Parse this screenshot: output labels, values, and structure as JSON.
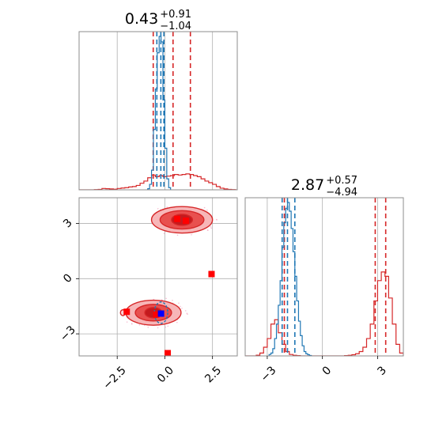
{
  "chart_data": {
    "type": "corner",
    "parameters": [
      "",
      ""
    ],
    "titles": [
      {
        "median": "0.43",
        "plus": "+0.91",
        "minus": "−1.04"
      },
      {
        "median": "2.87",
        "plus": "+0.57",
        "minus": "−4.94"
      }
    ],
    "xlim": [
      -4.5,
      3.8
    ],
    "ylim": [
      -4.2,
      4.4
    ],
    "x_ticks": [
      {
        "v": -2.5,
        "label": "−2.5"
      },
      {
        "v": 0.0,
        "label": "0.0"
      },
      {
        "v": 2.5,
        "label": "2.5"
      }
    ],
    "y_ticks": [
      {
        "v": -3,
        "label": "−3"
      },
      {
        "v": 0,
        "label": "0"
      },
      {
        "v": 3,
        "label": "3"
      }
    ],
    "grid": true,
    "colors": {
      "red": "#d62728",
      "blue": "#1f77b4",
      "pink_fill": "#f7b6b8",
      "mid_fill": "#e8504f",
      "dark_fill": "#c41a1e",
      "marker_blue": "#0000ff",
      "marker_red": "#ff0000"
    },
    "series": [
      {
        "name": "",
        "color": "#d62728",
        "hist_p1": {
          "x": [
            -4.5,
            -4.3,
            -4.1,
            -3.9,
            -3.7,
            -3.5,
            -3.3,
            -3.1,
            -2.9,
            -2.7,
            -2.5,
            -2.3,
            -2.1,
            -1.9,
            -1.7,
            -1.5,
            -1.3,
            -1.1,
            -0.9,
            -0.7,
            -0.5,
            -0.3,
            -0.1,
            0.1,
            0.3,
            0.5,
            0.7,
            0.9,
            1.1,
            1.3,
            1.5,
            1.7,
            1.9,
            2.1,
            2.3,
            2.5,
            2.7,
            2.9,
            3.1,
            3.3,
            3.5,
            3.7
          ],
          "y": [
            0,
            0,
            0,
            0,
            0.002,
            0.004,
            0.012,
            0.01,
            0.008,
            0.006,
            0.012,
            0.016,
            0.02,
            0.026,
            0.03,
            0.04,
            0.06,
            0.08,
            0.11,
            0.135,
            0.12,
            0.13,
            0.12,
            0.125,
            0.13,
            0.14,
            0.135,
            0.14,
            0.145,
            0.14,
            0.13,
            0.12,
            0.1,
            0.08,
            0.065,
            0.05,
            0.03,
            0.015,
            0.008,
            0.004,
            0.002,
            0
          ]
        },
        "quantiles_p1": [
          -0.61,
          0.43,
          1.34
        ],
        "hist_p2": {
          "x": [
            -4.2,
            -4.0,
            -3.8,
            -3.6,
            -3.4,
            -3.2,
            -3.0,
            -2.8,
            -2.6,
            -2.4,
            -2.2,
            -2.0,
            -1.8,
            -1.6,
            -1.4,
            -1.2,
            -1.0,
            -0.8,
            -0.6,
            -0.4,
            -0.2,
            0.0,
            0.2,
            0.4,
            0.6,
            0.8,
            1.0,
            1.2,
            1.4,
            1.6,
            1.8,
            2.0,
            2.2,
            2.4,
            2.6,
            2.8,
            3.0,
            3.2,
            3.4,
            3.6,
            3.8,
            4.0,
            4.2
          ],
          "y": [
            0,
            0,
            0,
            0.005,
            0.02,
            0.06,
            0.12,
            0.22,
            0.25,
            0.16,
            0.08,
            0.03,
            0.01,
            0.004,
            0.002,
            0,
            0,
            0,
            0,
            0,
            0,
            0,
            0,
            0,
            0,
            0,
            0,
            0.002,
            0.004,
            0.008,
            0.015,
            0.03,
            0.06,
            0.12,
            0.22,
            0.38,
            0.52,
            0.58,
            0.55,
            0.4,
            0.22,
            0.08,
            0.02
          ]
        },
        "quantiles_p2": [
          -2.07,
          2.87,
          3.44
        ]
      },
      {
        "name": "",
        "color": "#1f77b4",
        "hist_p1": {
          "x": [
            -0.9,
            -0.8,
            -0.7,
            -0.6,
            -0.5,
            -0.4,
            -0.3,
            -0.2,
            -0.1,
            0.0,
            0.1,
            0.2
          ],
          "y": [
            0.01,
            0.05,
            0.18,
            0.55,
            0.92,
            1.25,
            1.4,
            1.35,
            0.82,
            0.38,
            0.1,
            0.02
          ]
        },
        "quantiles_p1": [
          -0.42,
          -0.21,
          -0.05
        ],
        "hist_p2": {
          "x": [
            -2.9,
            -2.8,
            -2.7,
            -2.6,
            -2.5,
            -2.4,
            -2.3,
            -2.2,
            -2.1,
            -2.0,
            -1.9,
            -1.8,
            -1.7,
            -1.6,
            -1.5,
            -1.4,
            -1.3,
            -1.2,
            -1.1,
            -1.0,
            -0.9,
            -0.8,
            -0.7
          ],
          "y": [
            0.01,
            0.02,
            0.05,
            0.12,
            0.22,
            0.35,
            0.52,
            0.75,
            0.92,
            1.02,
            1.06,
            1.0,
            0.88,
            0.72,
            0.55,
            0.38,
            0.24,
            0.14,
            0.07,
            0.03,
            0.015,
            0.008,
            0.003
          ]
        },
        "quantiles_p2": [
          -2.19,
          -1.9,
          -1.5
        ]
      }
    ],
    "contours": [
      {
        "color": "#d62728",
        "center": [
          0.9,
          3.2
        ],
        "levels": [
          [
            1.6,
            0.72
          ],
          [
            1.15,
            0.5
          ],
          [
            0.55,
            0.3
          ]
        ]
      },
      {
        "color": "#d62728",
        "center": [
          -0.6,
          -1.85
        ],
        "levels": [
          [
            1.45,
            0.68
          ],
          [
            0.95,
            0.45
          ],
          [
            0.45,
            0.28
          ]
        ]
      },
      {
        "color": "#d62728",
        "center": [
          -2.2,
          -1.85
        ],
        "levels": [
          [
            0.13,
            0.16
          ]
        ]
      },
      {
        "color": "#1f77b4",
        "center": [
          -0.2,
          -1.85
        ],
        "levels": [
          [
            0.35,
            0.58
          ]
        ]
      }
    ],
    "markers": [
      {
        "x": -2.0,
        "y": -1.8,
        "color": "#ff0000"
      },
      {
        "x": -0.45,
        "y": -1.95,
        "color": "#ff0000"
      },
      {
        "x": -0.2,
        "y": -1.9,
        "color": "#0000ff"
      },
      {
        "x": 0.65,
        "y": 3.25,
        "color": "#ff0000"
      },
      {
        "x": 1.1,
        "y": 3.15,
        "color": "#ff0000"
      },
      {
        "x": 2.45,
        "y": 0.25,
        "color": "#ff0000"
      },
      {
        "x": 0.15,
        "y": -4.05,
        "color": "#ff0000"
      }
    ]
  }
}
